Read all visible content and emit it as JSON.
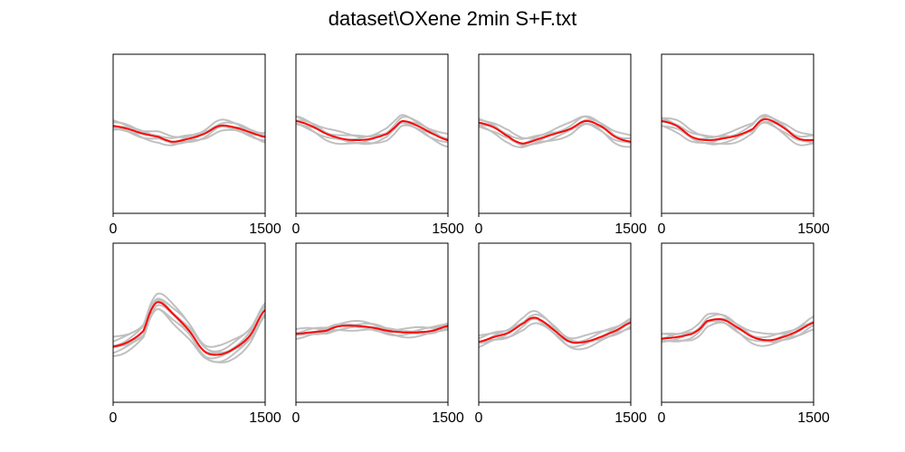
{
  "title": "dataset\\OXene 2min S+F.txt",
  "colors": {
    "samples": "#c0c0c0",
    "mean": "#ff0000",
    "frame": "#000000"
  },
  "chart_data": [
    {
      "type": "line",
      "panel": 1,
      "xlim": [
        0,
        1500
      ],
      "ylim": [
        0,
        1
      ],
      "xticks": [
        "0",
        "1500"
      ],
      "x": [
        0,
        150,
        300,
        450,
        525,
        600,
        750,
        900,
        1050,
        1200,
        1350,
        1500
      ],
      "series": [
        {
          "role": "mean",
          "values": [
            0.55,
            0.53,
            0.5,
            0.48,
            0.46,
            0.45,
            0.47,
            0.5,
            0.55,
            0.54,
            0.51,
            0.48
          ]
        }
      ],
      "samples": {
        "count": 6,
        "spread": 0.025
      }
    },
    {
      "type": "line",
      "panel": 2,
      "xlim": [
        0,
        1500
      ],
      "ylim": [
        0,
        1
      ],
      "xticks": [
        "0",
        "1500"
      ],
      "x": [
        0,
        150,
        300,
        450,
        600,
        750,
        900,
        975,
        1050,
        1200,
        1350,
        1500
      ],
      "series": [
        {
          "role": "mean",
          "values": [
            0.58,
            0.55,
            0.5,
            0.47,
            0.46,
            0.47,
            0.5,
            0.54,
            0.58,
            0.55,
            0.5,
            0.46
          ]
        }
      ],
      "samples": {
        "count": 6,
        "spread": 0.03
      }
    },
    {
      "type": "line",
      "panel": 3,
      "xlim": [
        0,
        1500
      ],
      "ylim": [
        0,
        1
      ],
      "xticks": [
        "0",
        "1500"
      ],
      "x": [
        0,
        150,
        300,
        375,
        450,
        600,
        750,
        900,
        1050,
        1200,
        1350,
        1500
      ],
      "series": [
        {
          "role": "mean",
          "values": [
            0.57,
            0.54,
            0.48,
            0.45,
            0.44,
            0.47,
            0.5,
            0.53,
            0.58,
            0.55,
            0.48,
            0.45
          ]
        }
      ],
      "samples": {
        "count": 6,
        "spread": 0.03
      }
    },
    {
      "type": "line",
      "panel": 4,
      "xlim": [
        0,
        1500
      ],
      "ylim": [
        0,
        1
      ],
      "xticks": [
        "0",
        "1500"
      ],
      "x": [
        0,
        150,
        300,
        450,
        600,
        750,
        900,
        975,
        1050,
        1200,
        1350,
        1500
      ],
      "series": [
        {
          "role": "mean",
          "values": [
            0.58,
            0.55,
            0.48,
            0.46,
            0.47,
            0.49,
            0.53,
            0.58,
            0.59,
            0.54,
            0.47,
            0.46
          ]
        }
      ],
      "samples": {
        "count": 6,
        "spread": 0.03
      }
    },
    {
      "type": "line",
      "panel": 5,
      "xlim": [
        0,
        1500
      ],
      "ylim": [
        0,
        1
      ],
      "xticks": [
        "0",
        "1500"
      ],
      "x": [
        0,
        150,
        300,
        375,
        450,
        600,
        750,
        900,
        1050,
        1200,
        1350,
        1500
      ],
      "series": [
        {
          "role": "mean",
          "values": [
            0.35,
            0.38,
            0.45,
            0.58,
            0.63,
            0.55,
            0.45,
            0.32,
            0.3,
            0.34,
            0.42,
            0.58
          ]
        }
      ],
      "samples": {
        "count": 7,
        "spread": 0.05
      }
    },
    {
      "type": "line",
      "panel": 6,
      "xlim": [
        0,
        1500
      ],
      "ylim": [
        0,
        1
      ],
      "xticks": [
        "0",
        "1500"
      ],
      "x": [
        0,
        150,
        300,
        375,
        450,
        600,
        750,
        900,
        1050,
        1200,
        1350,
        1500
      ],
      "series": [
        {
          "role": "mean",
          "values": [
            0.43,
            0.44,
            0.45,
            0.47,
            0.48,
            0.48,
            0.47,
            0.45,
            0.44,
            0.44,
            0.45,
            0.48
          ]
        }
      ],
      "samples": {
        "count": 6,
        "spread": 0.02
      }
    },
    {
      "type": "line",
      "panel": 7,
      "xlim": [
        0,
        1500
      ],
      "ylim": [
        0,
        1
      ],
      "xticks": [
        "0",
        "1500"
      ],
      "x": [
        0,
        150,
        300,
        450,
        525,
        600,
        750,
        900,
        1050,
        1200,
        1350,
        1500
      ],
      "series": [
        {
          "role": "mean",
          "values": [
            0.38,
            0.41,
            0.44,
            0.5,
            0.53,
            0.52,
            0.45,
            0.38,
            0.38,
            0.41,
            0.45,
            0.5
          ]
        }
      ],
      "samples": {
        "count": 6,
        "spread": 0.03
      }
    },
    {
      "type": "line",
      "panel": 8,
      "xlim": [
        0,
        1500
      ],
      "ylim": [
        0,
        1
      ],
      "xticks": [
        "0",
        "1500"
      ],
      "x": [
        0,
        150,
        300,
        375,
        450,
        600,
        750,
        900,
        1050,
        1200,
        1350,
        1500
      ],
      "series": [
        {
          "role": "mean",
          "values": [
            0.4,
            0.41,
            0.43,
            0.46,
            0.51,
            0.52,
            0.47,
            0.41,
            0.39,
            0.41,
            0.45,
            0.5
          ]
        }
      ],
      "samples": {
        "count": 6,
        "spread": 0.03
      }
    }
  ]
}
